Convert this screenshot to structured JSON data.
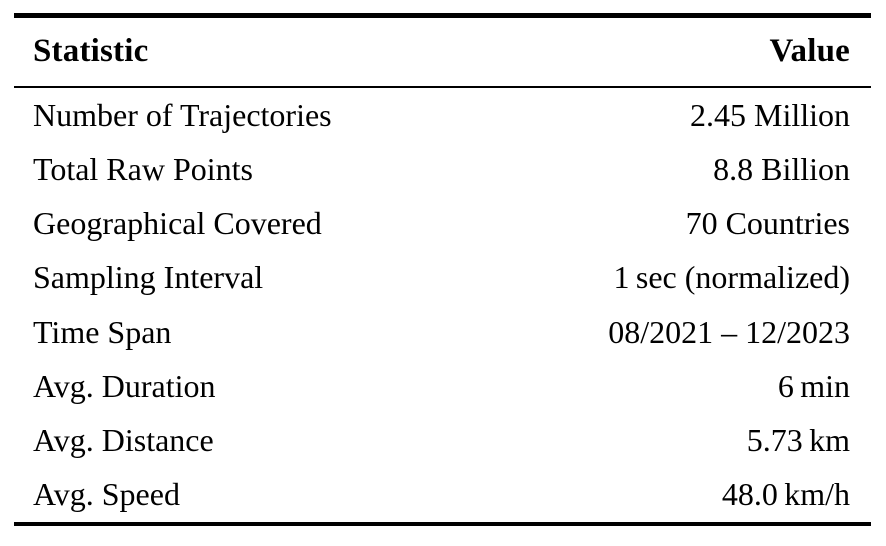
{
  "table": {
    "columns": [
      "Statistic",
      "Value"
    ],
    "rows": [
      {
        "label": "Number of Trajectories",
        "value": "2.45 Million"
      },
      {
        "label": "Total Raw Points",
        "value": "8.8 Billion"
      },
      {
        "label": "Geographical Covered",
        "value": "70 Countries"
      },
      {
        "label": "Sampling Interval",
        "value": "1 sec (normalized)"
      },
      {
        "label": "Time Span",
        "value": "08/2021 – 12/2023"
      },
      {
        "label": "Avg. Duration",
        "value": "6 min"
      },
      {
        "label": "Avg. Distance",
        "value": "5.73 km"
      },
      {
        "label": "Avg. Speed",
        "value": "48.0 km/h"
      }
    ]
  },
  "colors": {
    "text": "#000000",
    "background": "#ffffff",
    "rule": "#000000"
  }
}
